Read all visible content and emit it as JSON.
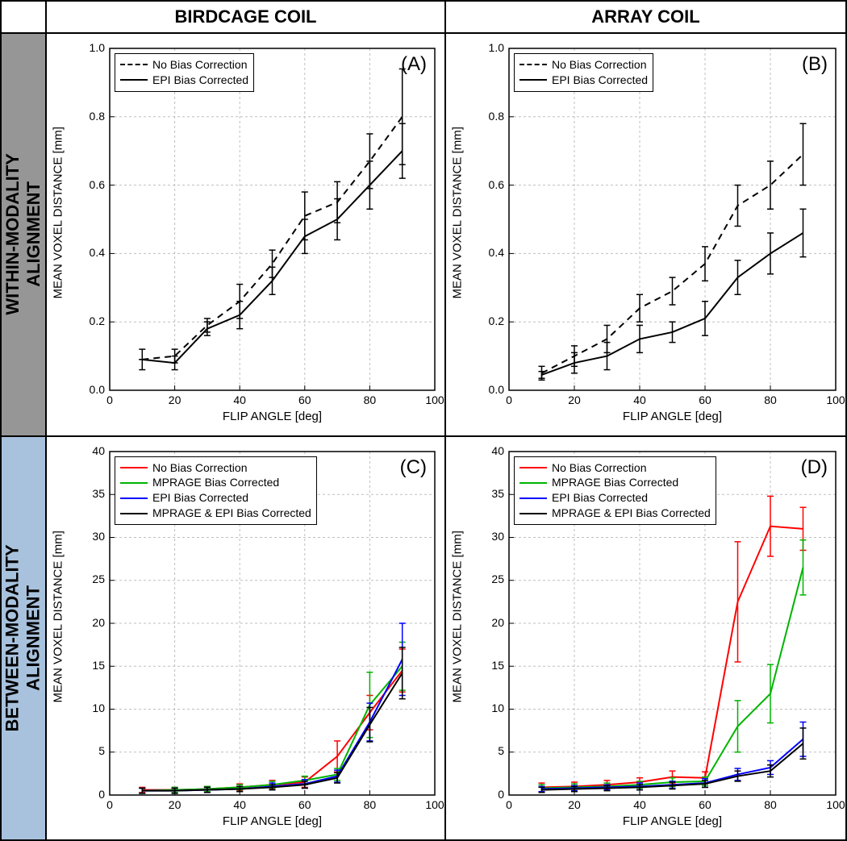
{
  "columns": {
    "birdcage": "BIRDCAGE COIL",
    "array": "ARRAY COIL"
  },
  "rows": {
    "within": "WITHIN-MODALITY\nALIGNMENT",
    "between": "BETWEEN-MODALITY\nALIGNMENT"
  },
  "colors": {
    "row1_bg": "#969696",
    "row2_bg": "#a8c2dd",
    "grid": "#bfbfbf",
    "axis": "#000000",
    "black": "#000000",
    "red": "#ff0000",
    "green": "#00b400",
    "blue": "#0000ff"
  },
  "legend_2": {
    "nobias": "No Bias Correction",
    "epi": "EPI Bias Corrected"
  },
  "legend_4": {
    "nobias": "No Bias Correction",
    "mprage": "MPRAGE Bias Corrected",
    "epi": "EPI Bias Corrected",
    "both": "MPRAGE & EPI Bias Corrected"
  },
  "panelA": {
    "tag": "(A)",
    "ylabel": "MEAN VOXEL DISTANCE [mm]",
    "xlabel": "FLIP ANGLE [deg]",
    "xlim": [
      0,
      100
    ],
    "xtick_step": 20,
    "ylim": [
      0,
      1
    ],
    "ytick_step": 0.2,
    "x": [
      10,
      20,
      30,
      40,
      50,
      60,
      70,
      80,
      90
    ],
    "series": [
      {
        "name": "No Bias Correction",
        "color": "#000000",
        "dash": true,
        "y": [
          0.09,
          0.1,
          0.19,
          0.26,
          0.37,
          0.51,
          0.55,
          0.67,
          0.8
        ],
        "err": [
          0.03,
          0.02,
          0.02,
          0.05,
          0.04,
          0.07,
          0.06,
          0.08,
          0.14
        ]
      },
      {
        "name": "EPI Bias Corrected",
        "color": "#000000",
        "dash": false,
        "y": [
          0.09,
          0.08,
          0.18,
          0.22,
          0.32,
          0.45,
          0.5,
          0.6,
          0.7
        ],
        "err": [
          0.0,
          0.02,
          0.02,
          0.04,
          0.04,
          0.05,
          0.06,
          0.07,
          0.08
        ]
      }
    ]
  },
  "panelB": {
    "tag": "(B)",
    "ylabel": "MEAN VOXEL DISTANCE [mm]",
    "xlabel": "FLIP ANGLE [deg]",
    "xlim": [
      0,
      100
    ],
    "xtick_step": 20,
    "ylim": [
      0,
      1
    ],
    "ytick_step": 0.2,
    "x": [
      10,
      20,
      30,
      40,
      50,
      60,
      70,
      80,
      90
    ],
    "series": [
      {
        "name": "No Bias Correction",
        "color": "#000000",
        "dash": true,
        "y": [
          0.05,
          0.1,
          0.15,
          0.24,
          0.29,
          0.37,
          0.54,
          0.6,
          0.69
        ],
        "err": [
          0.02,
          0.03,
          0.04,
          0.04,
          0.04,
          0.05,
          0.06,
          0.07,
          0.09
        ]
      },
      {
        "name": "EPI Bias Corrected",
        "color": "#000000",
        "dash": false,
        "y": [
          0.045,
          0.08,
          0.1,
          0.15,
          0.17,
          0.21,
          0.33,
          0.4,
          0.46
        ],
        "err": [
          0.01,
          0.03,
          0.04,
          0.04,
          0.03,
          0.05,
          0.05,
          0.06,
          0.07
        ]
      }
    ]
  },
  "panelC": {
    "tag": "(C)",
    "ylabel": "MEAN VOXEL DISTANCE [mm]",
    "xlabel": "FLIP ANGLE [deg]",
    "xlim": [
      0,
      100
    ],
    "xtick_step": 20,
    "ylim": [
      0,
      40
    ],
    "ytick_step": 5,
    "x": [
      10,
      20,
      30,
      40,
      50,
      60,
      70,
      80,
      90
    ],
    "series": [
      {
        "name": "No Bias Correction",
        "color": "#ff0000",
        "dash": false,
        "y": [
          0.6,
          0.6,
          0.7,
          0.9,
          1.2,
          1.5,
          4.5,
          9.6,
          14.5
        ],
        "err": [
          0.3,
          0.3,
          0.3,
          0.4,
          0.5,
          0.6,
          1.8,
          2.0,
          2.5
        ]
      },
      {
        "name": "MPRAGE Bias Corrected",
        "color": "#00b400",
        "dash": false,
        "y": [
          0.5,
          0.6,
          0.7,
          0.9,
          1.2,
          1.7,
          2.4,
          10.5,
          15.0
        ],
        "err": [
          0.3,
          0.3,
          0.3,
          0.3,
          0.4,
          0.5,
          0.7,
          3.8,
          2.8
        ]
      },
      {
        "name": "EPI Bias Corrected",
        "color": "#0000ff",
        "dash": false,
        "y": [
          0.5,
          0.5,
          0.6,
          0.7,
          1.0,
          1.3,
          2.2,
          8.5,
          15.8
        ],
        "err": [
          0.3,
          0.3,
          0.3,
          0.3,
          0.4,
          0.5,
          0.7,
          2.2,
          4.2
        ]
      },
      {
        "name": "MPRAGE & EPI Bias Corrected",
        "color": "#000000",
        "dash": false,
        "y": [
          0.5,
          0.5,
          0.6,
          0.7,
          0.9,
          1.2,
          2.0,
          8.2,
          14.2
        ],
        "err": [
          0.3,
          0.3,
          0.3,
          0.3,
          0.3,
          0.4,
          0.6,
          2.0,
          3.0
        ]
      }
    ]
  },
  "panelD": {
    "tag": "(D)",
    "ylabel": "MEAN VOXEL DISTANCE [mm]",
    "xlabel": "FLIP ANGLE [deg]",
    "xlim": [
      0,
      100
    ],
    "xtick_step": 20,
    "ylim": [
      0,
      40
    ],
    "ytick_step": 5,
    "x": [
      10,
      20,
      30,
      40,
      50,
      60,
      70,
      80,
      90
    ],
    "series": [
      {
        "name": "No Bias Correction",
        "color": "#ff0000",
        "dash": false,
        "y": [
          0.9,
          1.0,
          1.2,
          1.5,
          2.1,
          2.0,
          22.5,
          31.3,
          31.0
        ],
        "err": [
          0.5,
          0.5,
          0.5,
          0.5,
          0.7,
          0.7,
          7.0,
          3.5,
          2.5
        ]
      },
      {
        "name": "MPRAGE Bias Corrected",
        "color": "#00b400",
        "dash": false,
        "y": [
          0.8,
          0.9,
          1.0,
          1.2,
          1.5,
          1.6,
          8.0,
          11.8,
          26.5
        ],
        "err": [
          0.4,
          0.4,
          0.4,
          0.4,
          0.5,
          0.5,
          3.0,
          3.4,
          3.2
        ]
      },
      {
        "name": "EPI Bias Corrected",
        "color": "#0000ff",
        "dash": false,
        "y": [
          0.7,
          0.8,
          0.9,
          1.0,
          1.2,
          1.4,
          2.4,
          3.2,
          6.5
        ],
        "err": [
          0.3,
          0.3,
          0.3,
          0.4,
          0.4,
          0.5,
          0.7,
          0.8,
          2.0
        ]
      },
      {
        "name": "MPRAGE & EPI Bias Corrected",
        "color": "#000000",
        "dash": false,
        "y": [
          0.6,
          0.7,
          0.8,
          0.9,
          1.1,
          1.3,
          2.2,
          2.8,
          6.0
        ],
        "err": [
          0.3,
          0.3,
          0.3,
          0.3,
          0.4,
          0.4,
          0.6,
          0.7,
          1.8
        ]
      }
    ]
  }
}
